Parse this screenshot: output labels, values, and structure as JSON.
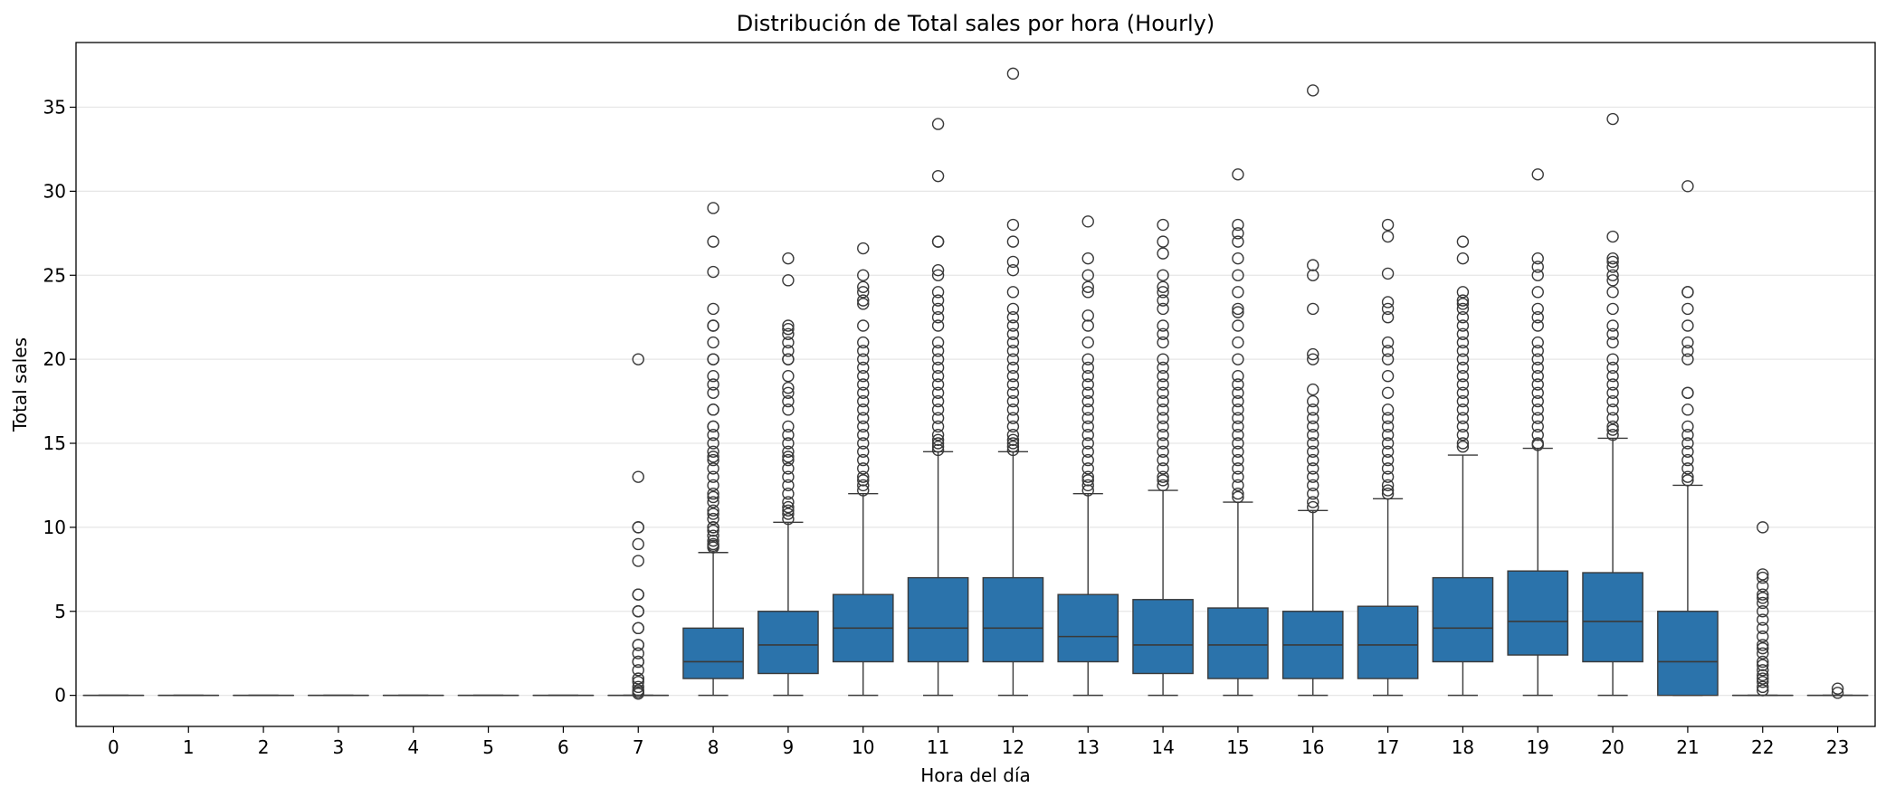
{
  "chart_data": {
    "type": "boxplot",
    "title": "Distribución de Total sales por hora (Hourly)",
    "xlabel": "Hora del día",
    "ylabel": "Total sales",
    "categories": [
      "0",
      "1",
      "2",
      "3",
      "4",
      "5",
      "6",
      "7",
      "8",
      "9",
      "10",
      "11",
      "12",
      "13",
      "14",
      "15",
      "16",
      "17",
      "18",
      "19",
      "20",
      "21",
      "22",
      "23"
    ],
    "ylim": [
      -1.85,
      38.85
    ],
    "yticks": [
      0,
      5,
      10,
      15,
      20,
      25,
      30,
      35
    ],
    "grid": "y",
    "colors": {
      "box": "#2b73ab",
      "line": "#3a3a3a",
      "grid": "#e6e6e6"
    },
    "boxes": [
      {
        "q1": 0,
        "median": 0,
        "q3": 0,
        "whislo": 0,
        "whishi": 0,
        "fliers": []
      },
      {
        "q1": 0,
        "median": 0,
        "q3": 0,
        "whislo": 0,
        "whishi": 0,
        "fliers": []
      },
      {
        "q1": 0,
        "median": 0,
        "q3": 0,
        "whislo": 0,
        "whishi": 0,
        "fliers": []
      },
      {
        "q1": 0,
        "median": 0,
        "q3": 0,
        "whislo": 0,
        "whishi": 0,
        "fliers": []
      },
      {
        "q1": 0,
        "median": 0,
        "q3": 0,
        "whislo": 0,
        "whishi": 0,
        "fliers": []
      },
      {
        "q1": 0,
        "median": 0,
        "q3": 0,
        "whislo": 0,
        "whishi": 0,
        "fliers": []
      },
      {
        "q1": 0,
        "median": 0,
        "q3": 0,
        "whislo": 0,
        "whishi": 0,
        "fliers": []
      },
      {
        "q1": 0,
        "median": 0,
        "q3": 0,
        "whislo": 0,
        "whishi": 0,
        "fliers": [
          20,
          13,
          10,
          10,
          9,
          8,
          6,
          6,
          5,
          5,
          4,
          4,
          3,
          3,
          2.5,
          2,
          2,
          1.5,
          1,
          1,
          0.8,
          0.5,
          0.3,
          0.2,
          0.1
        ]
      },
      {
        "q1": 1,
        "median": 2,
        "q3": 4,
        "whislo": 0,
        "whishi": 8.5,
        "fliers": [
          29,
          27,
          25.2,
          23,
          22,
          22,
          21,
          20,
          20,
          19,
          18.5,
          18,
          17,
          17,
          16,
          16,
          15.5,
          15,
          14.5,
          14.2,
          14,
          13.5,
          13,
          12.5,
          12,
          11.8,
          11.5,
          11,
          10.8,
          10.5,
          10,
          10,
          9.8,
          9.5,
          9.2,
          9,
          8.9,
          8.8
        ]
      },
      {
        "q1": 1.3,
        "median": 3,
        "q3": 5,
        "whislo": 0,
        "whishi": 10.3,
        "fliers": [
          26,
          24.7,
          22,
          21.8,
          21.5,
          21,
          20.5,
          20,
          20,
          19,
          18.3,
          18,
          17.5,
          17,
          16,
          15.5,
          15,
          14.5,
          14.2,
          14,
          13.5,
          13,
          12.5,
          12,
          11.5,
          11.2,
          11,
          10.8,
          10.5
        ]
      },
      {
        "q1": 2,
        "median": 4,
        "q3": 6,
        "whislo": 0,
        "whishi": 12,
        "fliers": [
          26.6,
          25,
          24.3,
          24,
          23.5,
          23.3,
          22,
          21,
          20.5,
          20,
          19.5,
          19,
          18.5,
          18,
          17.5,
          17,
          16.5,
          16,
          15.5,
          15,
          14.5,
          14,
          13.5,
          13,
          12.8,
          12.5,
          12.2
        ]
      },
      {
        "q1": 2,
        "median": 4,
        "q3": 7,
        "whislo": 0,
        "whishi": 14.5,
        "fliers": [
          34,
          30.9,
          27,
          27,
          25.3,
          25,
          24,
          23.5,
          23,
          22.5,
          22,
          21,
          20.5,
          20,
          19.5,
          19,
          18.5,
          18,
          17.5,
          17,
          16.5,
          16,
          15.5,
          15.2,
          15,
          14.8,
          14.6
        ]
      },
      {
        "q1": 2,
        "median": 4,
        "q3": 7,
        "whislo": 0,
        "whishi": 14.5,
        "fliers": [
          37,
          28,
          27,
          25.8,
          25.3,
          24,
          23,
          22.5,
          22,
          21.5,
          21,
          20.5,
          20,
          19.5,
          19,
          18.5,
          18,
          17.5,
          17,
          16.5,
          16,
          15.5,
          15.2,
          15,
          14.8,
          14.6
        ]
      },
      {
        "q1": 2,
        "median": 3.5,
        "q3": 6,
        "whislo": 0,
        "whishi": 12,
        "fliers": [
          28.2,
          26,
          25,
          24.3,
          24,
          22.6,
          22,
          21,
          20,
          19.5,
          19,
          18.5,
          18,
          17.5,
          17,
          16.5,
          16,
          15.5,
          15,
          14.5,
          14,
          13.5,
          13,
          12.8,
          12.5,
          12.2
        ]
      },
      {
        "q1": 1.3,
        "median": 3,
        "q3": 5.7,
        "whislo": 0,
        "whishi": 12.2,
        "fliers": [
          28,
          27,
          26.3,
          25,
          24.3,
          24,
          23.5,
          23,
          22,
          21.5,
          21,
          20,
          19.5,
          19,
          18.5,
          18,
          17.5,
          17,
          16.5,
          16,
          15.5,
          15,
          14.5,
          14,
          13.5,
          13,
          12.8,
          12.5
        ]
      },
      {
        "q1": 1,
        "median": 3,
        "q3": 5.2,
        "whislo": 0,
        "whishi": 11.5,
        "fliers": [
          31,
          28,
          27.5,
          27,
          26,
          25,
          24,
          23,
          22.8,
          22,
          21,
          20,
          19,
          18.5,
          18,
          17.5,
          17,
          16.5,
          16,
          15.5,
          15,
          14.5,
          14,
          13.5,
          13,
          12.5,
          12,
          11.8
        ]
      },
      {
        "q1": 1,
        "median": 3,
        "q3": 5,
        "whislo": 0,
        "whishi": 11,
        "fliers": [
          36,
          25.6,
          25,
          23,
          20.3,
          20,
          18.2,
          17.5,
          17,
          16.5,
          16,
          15.5,
          15,
          14.5,
          14,
          13.5,
          13,
          12.5,
          12,
          11.5,
          11.2
        ]
      },
      {
        "q1": 1,
        "median": 3,
        "q3": 5.3,
        "whislo": 0,
        "whishi": 11.7,
        "fliers": [
          28,
          27.3,
          25.1,
          23.4,
          23,
          22.5,
          21,
          20.5,
          20,
          19,
          18,
          17,
          16.5,
          16,
          15.5,
          15,
          14.5,
          14,
          13.5,
          13,
          12.5,
          12.2,
          12
        ]
      },
      {
        "q1": 2,
        "median": 4,
        "q3": 7,
        "whislo": 0,
        "whishi": 14.3,
        "fliers": [
          27,
          26,
          24,
          23.5,
          23.3,
          23,
          22.5,
          22,
          21.5,
          21,
          20.5,
          20,
          19.5,
          19,
          18.5,
          18,
          17.5,
          17,
          16.5,
          16,
          15.5,
          15,
          14.8
        ]
      },
      {
        "q1": 2.4,
        "median": 4.4,
        "q3": 7.4,
        "whislo": 0,
        "whishi": 14.7,
        "fliers": [
          31,
          26,
          25.5,
          25,
          24,
          23,
          22.5,
          22,
          21,
          20.5,
          20,
          19.5,
          19,
          18.5,
          18,
          17.5,
          17,
          16.5,
          16,
          15.5,
          15,
          14.9
        ]
      },
      {
        "q1": 2,
        "median": 4.4,
        "q3": 7.3,
        "whislo": 0,
        "whishi": 15.3,
        "fliers": [
          34.3,
          27.3,
          26,
          25.8,
          25.5,
          25,
          24.7,
          24,
          23,
          22,
          21.5,
          21,
          20,
          19.5,
          19,
          18.5,
          18,
          17.5,
          17,
          16.5,
          16,
          15.8,
          15.5
        ]
      },
      {
        "q1": 0,
        "median": 2,
        "q3": 5,
        "whislo": 0,
        "whishi": 12.5,
        "fliers": [
          30.3,
          24,
          24,
          23,
          22,
          21,
          20.5,
          20,
          18,
          18,
          17,
          16,
          15.5,
          15,
          14.5,
          14,
          13.5,
          13,
          12.8
        ]
      },
      {
        "q1": 0,
        "median": 0,
        "q3": 0,
        "whislo": 0,
        "whishi": 0,
        "fliers": [
          10,
          7.2,
          7,
          6.5,
          6,
          5.8,
          5.5,
          5,
          4.5,
          4,
          3.5,
          3,
          2.8,
          2.5,
          2,
          1.8,
          1.5,
          1.2,
          1,
          0.8,
          0.5,
          0.3
        ]
      },
      {
        "q1": 0,
        "median": 0,
        "q3": 0,
        "whislo": 0,
        "whishi": 0,
        "fliers": [
          0.4,
          0.15
        ]
      }
    ]
  }
}
